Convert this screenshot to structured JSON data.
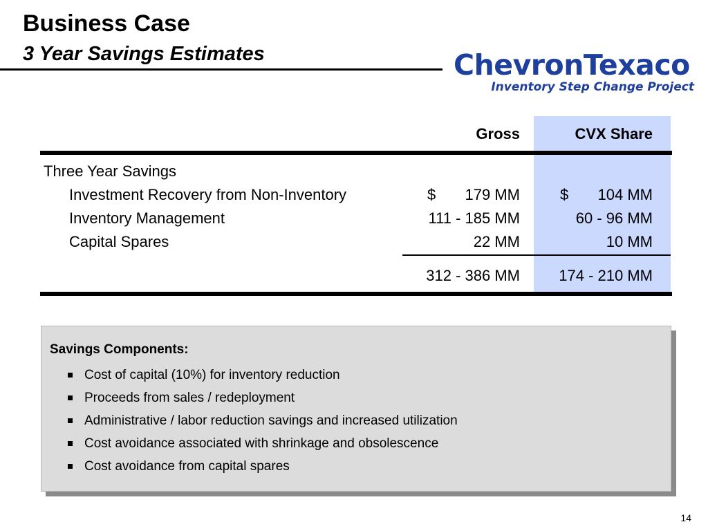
{
  "header": {
    "title": "Business Case",
    "subtitle": "3 Year Savings Estimates"
  },
  "logo": {
    "wordmark": "ChevronTexaco",
    "tagline": "Inventory Step Change Project",
    "color": "#1f3f9c"
  },
  "table": {
    "columns": [
      "Gross",
      "CVX Share"
    ],
    "highlight_color": "#ccd9ff",
    "section_label": "Three Year Savings",
    "rows": [
      {
        "label": "Investment Recovery from Non-Inventory",
        "gross_dollar": "$",
        "gross": "179 MM",
        "cvx_dollar": "$",
        "cvx": "104 MM"
      },
      {
        "label": "Inventory Management",
        "gross_dollar": "",
        "gross": "111 - 185 MM",
        "cvx_dollar": "",
        "cvx": "60 - 96 MM"
      },
      {
        "label": "Capital Spares",
        "gross_dollar": "",
        "gross": "22 MM",
        "cvx_dollar": "",
        "cvx": "10 MM"
      }
    ],
    "total": {
      "gross": "312 - 386 MM",
      "cvx": "174 - 210 MM"
    }
  },
  "savings_box": {
    "heading": "Savings Components:",
    "items": [
      "Cost of capital (10%) for inventory reduction",
      "Proceeds from sales / redeployment",
      "Administrative / labor reduction savings and increased utilization",
      "Cost avoidance associated with shrinkage and obsolescence",
      "Cost avoidance from capital spares"
    ]
  },
  "footer": {
    "page_number": "14"
  }
}
